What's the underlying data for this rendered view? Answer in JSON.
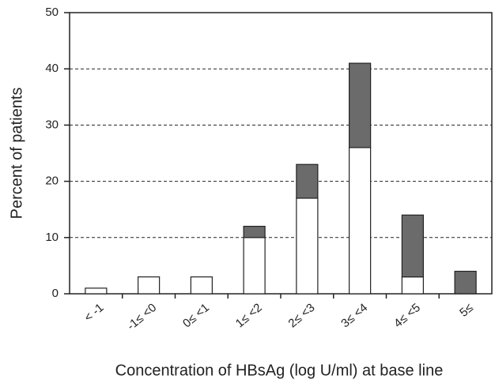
{
  "chart_data": {
    "type": "stacked_bar",
    "y_label": "Percent of patients",
    "x_label": "Concentration of HBsAg (log U/ml) at base line",
    "categories": [
      "< -1",
      "-1≤ <0",
      "0≤ <1",
      "1≤ <2",
      "2≤ <3",
      "3≤ <4",
      "4≤ <5",
      "5≤"
    ],
    "series": [
      {
        "color": "#ffffff",
        "values": [
          1,
          3,
          3,
          10,
          17,
          26,
          3,
          0
        ]
      },
      {
        "color": "#6b6b6b",
        "values": [
          0,
          0,
          0,
          2,
          6,
          15,
          11,
          4
        ]
      }
    ],
    "ylim": [
      0,
      50
    ],
    "yticks": [
      0,
      10,
      20,
      30,
      40,
      50
    ],
    "grid": true
  }
}
